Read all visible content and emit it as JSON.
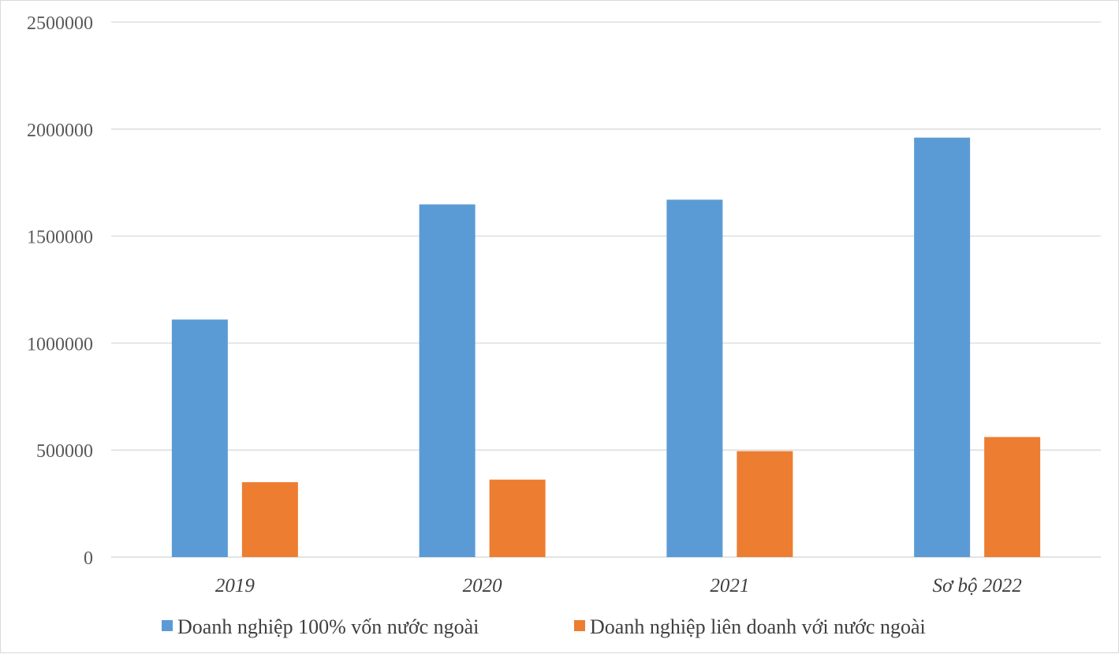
{
  "chart_data": {
    "type": "bar",
    "title": "",
    "xlabel": "",
    "ylabel": "",
    "categories": [
      "2019",
      "2020",
      "2021",
      "Sơ bộ 2022"
    ],
    "series": [
      {
        "name": "Doanh nghiệp 100% vốn nước ngoài",
        "color": "#5b9bd5",
        "values": [
          1110000,
          1648000,
          1670000,
          1960000
        ]
      },
      {
        "name": "Doanh nghiệp liên doanh với nước ngoài",
        "color": "#ed7d31",
        "values": [
          350000,
          362000,
          495000,
          561000
        ]
      }
    ],
    "ylim": [
      0,
      2500000
    ],
    "yticks": [
      "0",
      "500000",
      "1000000",
      "1500000",
      "2000000",
      "2500000"
    ],
    "grid": true,
    "legend_position": "bottom"
  }
}
